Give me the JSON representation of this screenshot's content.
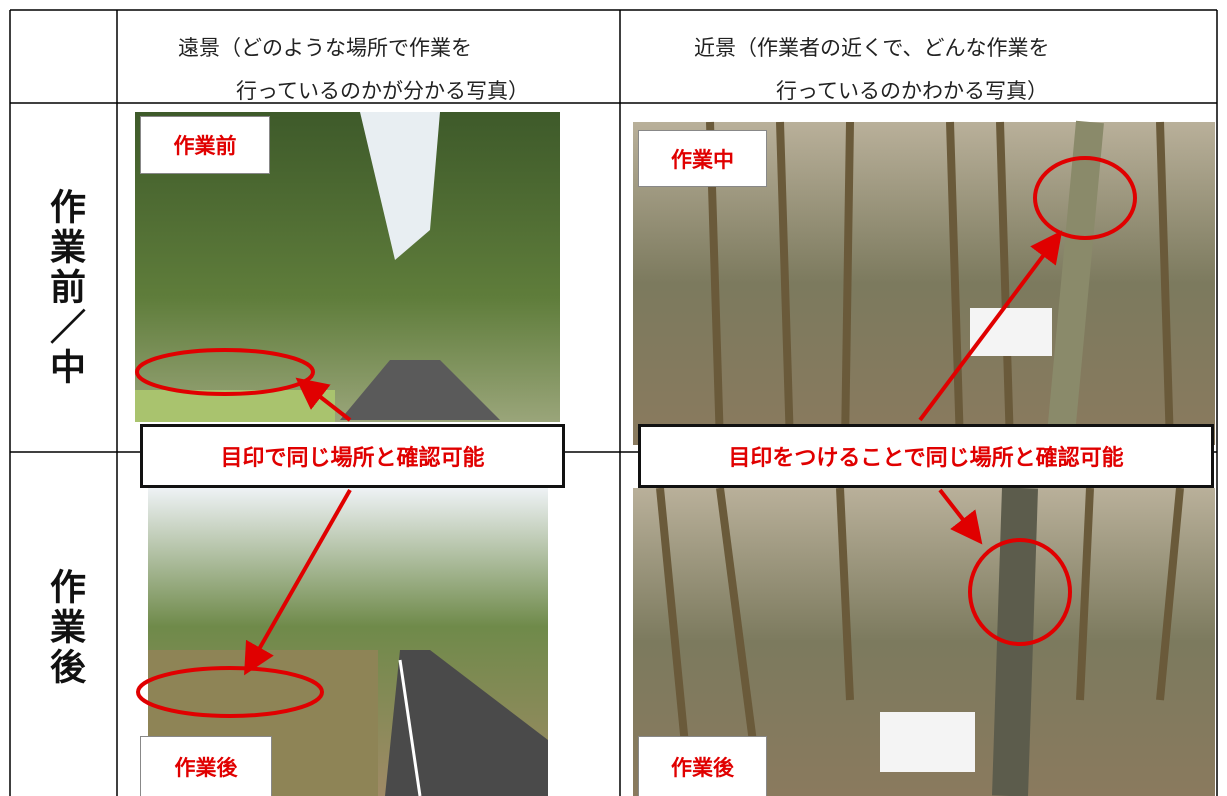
{
  "table": {
    "header": [
      {
        "lines": [
          "遠景（どのような場所で作業を",
          "行っているのかが分かる写真）"
        ]
      },
      {
        "lines": [
          "近景（作業者の近くで、どんな作業を",
          "行っているのかわかる写真）"
        ]
      }
    ],
    "rows": [
      {
        "label": "作業前／中",
        "far_photo_label": "作業前",
        "near_photo_label": "作業中"
      },
      {
        "label": "作業後",
        "far_photo_label": "作業後",
        "near_photo_label": "作業後"
      }
    ],
    "callouts": [
      "目印で同じ場所と確認可能",
      "目印をつけることで同じ場所と確認可能"
    ]
  }
}
